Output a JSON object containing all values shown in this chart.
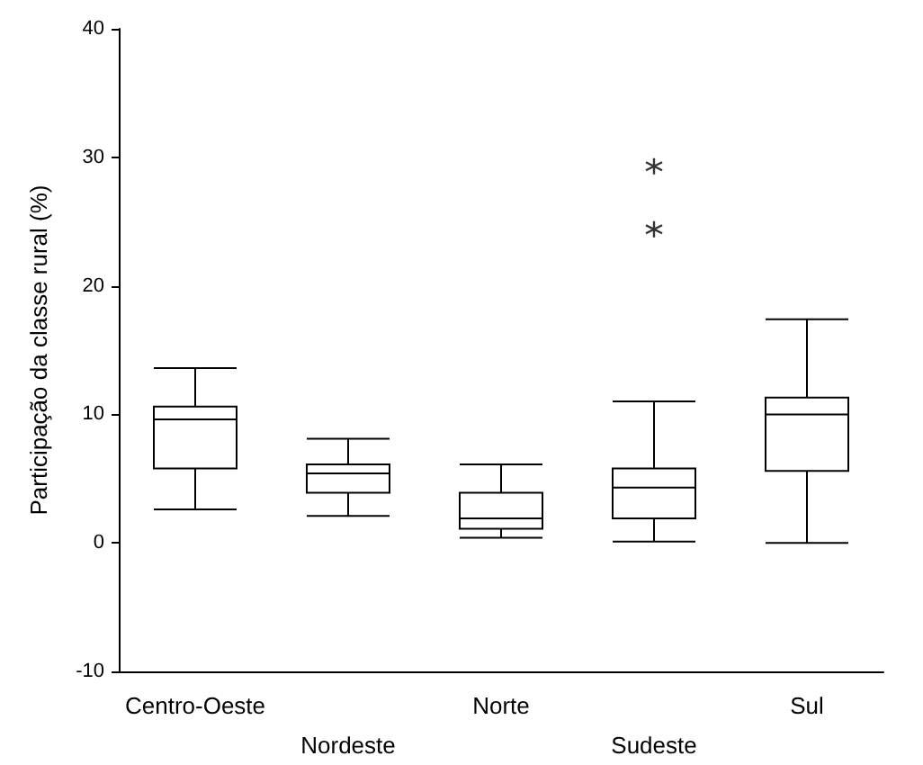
{
  "chart_data": {
    "type": "box",
    "ylabel": "Participação da classe rural (%)",
    "categories": [
      "Centro-Oeste",
      "Nordeste",
      "Norte",
      "Sudeste",
      "Sul"
    ],
    "boxes": [
      {
        "low": 2.6,
        "q1": 5.8,
        "median": 9.6,
        "q3": 10.6,
        "high": 13.6
      },
      {
        "low": 2.1,
        "q1": 3.9,
        "median": 5.4,
        "q3": 6.1,
        "high": 8.1
      },
      {
        "low": 0.4,
        "q1": 1.1,
        "median": 1.9,
        "q3": 3.9,
        "high": 6.1
      },
      {
        "low": 0.1,
        "q1": 1.9,
        "median": 4.3,
        "q3": 5.8,
        "high": 11.0,
        "outliers": [
          29.3,
          24.4
        ]
      },
      {
        "low": 0,
        "q1": 5.6,
        "median": 10.0,
        "q3": 11.3,
        "high": 17.4
      }
    ],
    "color": "#000000",
    "ylim": [
      -10,
      40
    ],
    "yticks": [
      -10,
      0,
      10,
      20,
      30,
      40
    ],
    "grid": false
  }
}
